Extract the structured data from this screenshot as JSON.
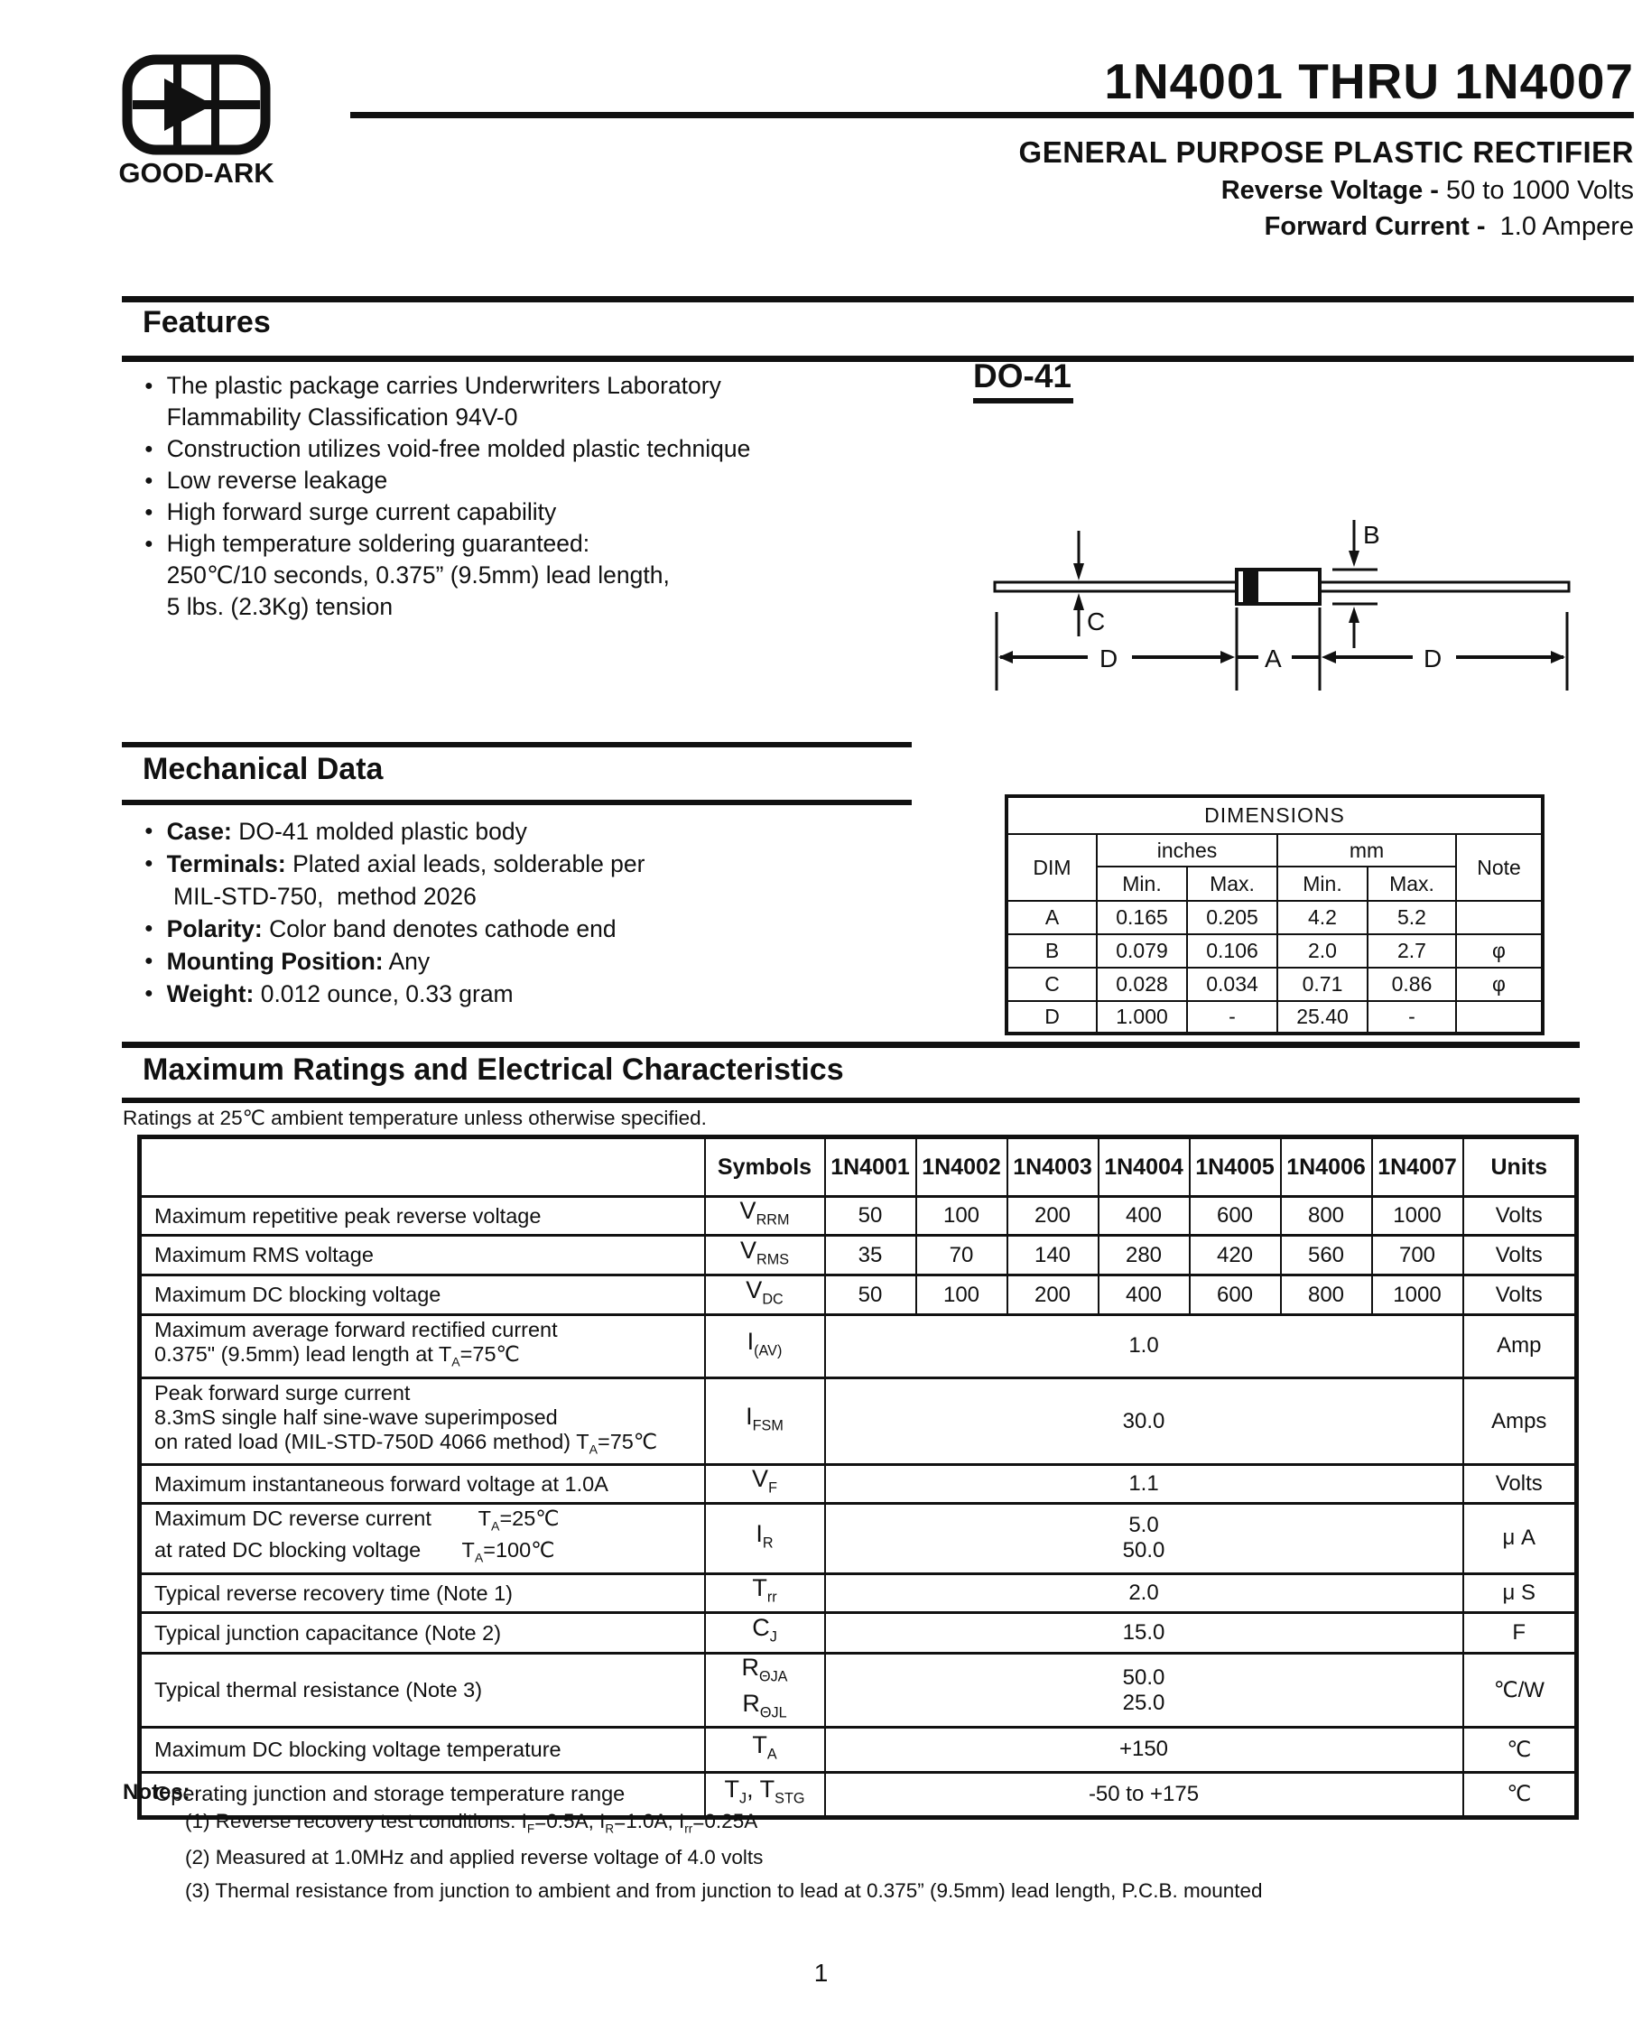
{
  "brand": {
    "name": "GOOD-ARK"
  },
  "header": {
    "title": "1N4001 THRU 1N4007",
    "subtitle": "GENERAL PURPOSE PLASTIC RECTIFIER",
    "reverse_voltage_label": "Reverse Voltage -",
    "reverse_voltage_value": " 50 to 1000 Volts",
    "forward_current_label": "Forward Current -",
    "forward_current_value": "  1.0 Ampere"
  },
  "features": {
    "heading": "Features",
    "items": [
      "The plastic package carries Underwriters Laboratory\nFlammability Classification 94V-0",
      "Construction utilizes void-free molded plastic technique",
      "Low reverse leakage",
      "High forward surge current capability",
      "High temperature soldering guaranteed:\n250℃/10 seconds, 0.375” (9.5mm) lead length,\n5 lbs. (2.3Kg) tension"
    ]
  },
  "package_diagram": {
    "label": "DO-41",
    "dim_b": "B",
    "dim_c": "C",
    "dim_a": "A",
    "dim_d_left": "D",
    "dim_d_right": "D"
  },
  "mechanical": {
    "heading": "Mechanical Data",
    "items": [
      {
        "label": "Case:",
        "text": " DO-41 molded plastic body"
      },
      {
        "label": "Terminals:",
        "text": " Plated axial leads, solderable per\n MIL-STD-750,  method 2026"
      },
      {
        "label": "Polarity:",
        "text": " Color band denotes cathode end"
      },
      {
        "label": "Mounting Position:",
        "text": " Any"
      },
      {
        "label": "Weight:",
        "text": " 0.012 ounce, 0.33 gram"
      }
    ]
  },
  "dimensions_table": {
    "title": "DIMENSIONS",
    "dim_header": "DIM",
    "inches_header": "inches",
    "mm_header": "mm",
    "note_header": "Note",
    "min_label": "Min.",
    "max_label": "Max.",
    "rows": [
      {
        "dim": "A",
        "in_min": "0.165",
        "in_max": "0.205",
        "mm_min": "4.2",
        "mm_max": "5.2",
        "note": ""
      },
      {
        "dim": "B",
        "in_min": "0.079",
        "in_max": "0.106",
        "mm_min": "2.0",
        "mm_max": "2.7",
        "note": "φ"
      },
      {
        "dim": "C",
        "in_min": "0.028",
        "in_max": "0.034",
        "mm_min": "0.71",
        "mm_max": "0.86",
        "note": "φ"
      },
      {
        "dim": "D",
        "in_min": "1.000",
        "in_max": "-",
        "mm_min": "25.40",
        "mm_max": "-",
        "note": ""
      }
    ]
  },
  "ratings": {
    "heading": "Maximum Ratings and Electrical Characteristics",
    "condition_note": "Ratings at 25℃ ambient temperature unless otherwise specified.",
    "col_symbols": "Symbols",
    "col_parts": [
      "1N4001",
      "1N4002",
      "1N4003",
      "1N4004",
      "1N4005",
      "1N4006",
      "1N4007"
    ],
    "col_units": "Units",
    "rows": [
      {
        "param": "Maximum repetitive peak reverse voltage",
        "symbol": "V{RRM}",
        "values": [
          "50",
          "100",
          "200",
          "400",
          "600",
          "800",
          "1000"
        ],
        "units": "Volts"
      },
      {
        "param": "Maximum RMS voltage",
        "symbol": "V{RMS}",
        "values": [
          "35",
          "70",
          "140",
          "280",
          "420",
          "560",
          "700"
        ],
        "units": "Volts"
      },
      {
        "param": "Maximum DC blocking voltage",
        "symbol": "V{DC}",
        "values": [
          "50",
          "100",
          "200",
          "400",
          "600",
          "800",
          "1000"
        ],
        "units": "Volts"
      },
      {
        "param": "Maximum average forward rectified current\n0.375\" (9.5mm) lead length at T{A}=75℃",
        "symbol": "I{(AV)}",
        "value": "1.0",
        "units": "Amp"
      },
      {
        "param": "Peak forward surge current\n8.3mS single half sine-wave superimposed\non rated load (MIL-STD-750D 4066 method) T{A}=75℃",
        "symbol": "I{FSM}",
        "value": "30.0",
        "units": "Amps"
      },
      {
        "param": "Maximum instantaneous forward voltage at 1.0A",
        "symbol": "V{F}",
        "value": "1.1",
        "units": "Volts"
      },
      {
        "param": "Maximum DC reverse current        T{A}=25℃\nat rated DC blocking voltage       T{A}=100℃",
        "symbol": "I{R}",
        "value": "5.0\n50.0",
        "units": "μ A"
      },
      {
        "param": "Typical reverse recovery time (Note 1)",
        "symbol": "T{rr}",
        "value": "2.0",
        "units": "μ S"
      },
      {
        "param": "Typical junction capacitance (Note 2)",
        "symbol": "C{J}",
        "value": "15.0",
        "units": "F"
      },
      {
        "param": "Typical thermal resistance (Note 3)",
        "symbol": "R{ΘJA}\nR{ΘJL}",
        "value": "50.0\n25.0",
        "units": "℃/W"
      },
      {
        "param": "Maximum DC blocking voltage temperature",
        "symbol": "T{A}",
        "value": "+150",
        "units": "℃"
      },
      {
        "param": "Operating junction and storage temperature range",
        "symbol": "T{J}, T{STG}",
        "value": "-50 to +175",
        "units": "℃"
      }
    ]
  },
  "notes": {
    "heading": "Notes:",
    "items": [
      "(1) Reverse recovery test conditions: I{F}=0.5A, I{R}=1.0A, I{rr}=0.25A",
      "(2) Measured at 1.0MHz and applied reverse voltage of 4.0 volts",
      "(3) Thermal resistance from junction to ambient and from junction to lead at 0.375” (9.5mm) lead length, P.C.B. mounted"
    ]
  },
  "page_number": "1"
}
